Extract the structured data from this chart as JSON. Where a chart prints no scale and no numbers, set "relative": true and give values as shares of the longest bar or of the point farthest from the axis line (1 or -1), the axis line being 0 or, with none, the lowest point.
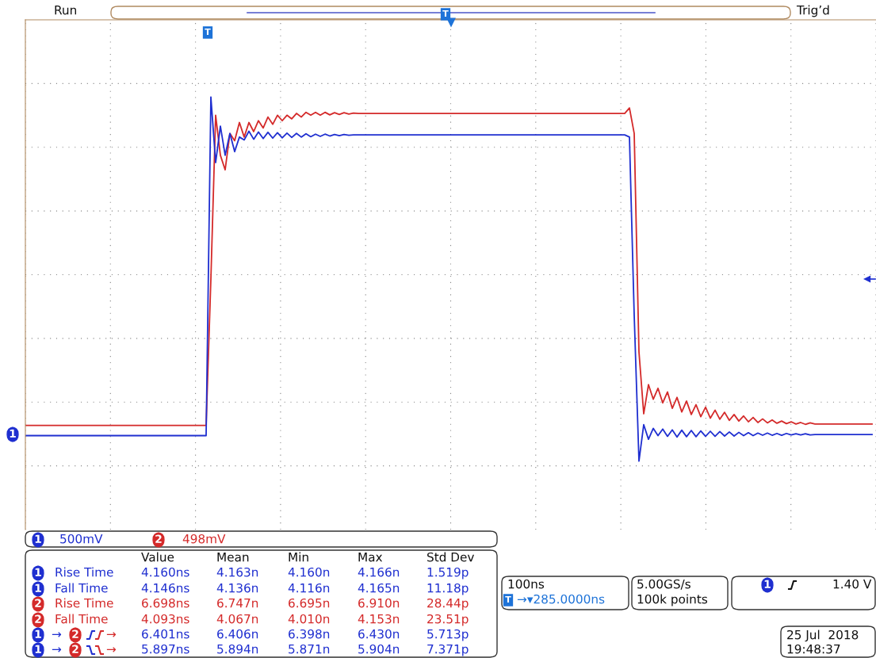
{
  "chart_data": {
    "type": "line",
    "relative": true,
    "grid": true,
    "categories": [
      null,
      null,
      null,
      null,
      null,
      null,
      null,
      null,
      null,
      null,
      null,
      null,
      null,
      null,
      null,
      null,
      null,
      null,
      null,
      null,
      null,
      null,
      null,
      null,
      null,
      null,
      null,
      null,
      null,
      null,
      null,
      null,
      null,
      null,
      null,
      null,
      null,
      null,
      null,
      null,
      null,
      null,
      null,
      null,
      null,
      null,
      null,
      null,
      null,
      null,
      null,
      null,
      null,
      null,
      null,
      null,
      null,
      null,
      null,
      null,
      null,
      null,
      null,
      null,
      null,
      null,
      null,
      null,
      null,
      null,
      null,
      null,
      null,
      null,
      null,
      null,
      null,
      null,
      null,
      null,
      null,
      null,
      null,
      null,
      null,
      null,
      null,
      null,
      null,
      null,
      null,
      null,
      null,
      null,
      null,
      null,
      null,
      null,
      null,
      null,
      null,
      null,
      null,
      null,
      null,
      null,
      null,
      null,
      null,
      null,
      null,
      null,
      null,
      null,
      null,
      null,
      null,
      null,
      null,
      null,
      null,
      null,
      null,
      null,
      null,
      null,
      null,
      null,
      null,
      null,
      null,
      null,
      null,
      null,
      null,
      null,
      null,
      null,
      null,
      null,
      null,
      null,
      null,
      null,
      null,
      null,
      null,
      null,
      null,
      null,
      null,
      null,
      null,
      null,
      null,
      null,
      null,
      null,
      null,
      null,
      null,
      null,
      null,
      null,
      null,
      null,
      null,
      null,
      null,
      null,
      null,
      null,
      null,
      null,
      null,
      null,
      null,
      null,
      null
    ],
    "series": [
      {
        "color": "#d42a2a",
        "values": [
          0.098,
          0.098,
          0.098,
          0.098,
          0.098,
          0.098,
          0.098,
          0.098,
          0.098,
          0.098,
          0.098,
          0.098,
          0.098,
          0.098,
          0.098,
          0.098,
          0.098,
          0.098,
          0.098,
          0.098,
          0.098,
          0.098,
          0.098,
          0.098,
          0.098,
          0.098,
          0.098,
          0.098,
          0.098,
          0.098,
          0.098,
          0.098,
          0.098,
          0.098,
          0.098,
          0.098,
          0.098,
          0.098,
          0.098,
          0.5,
          0.95,
          0.84,
          0.8,
          0.9,
          0.88,
          0.93,
          0.89,
          0.93,
          0.905,
          0.935,
          0.915,
          0.945,
          0.925,
          0.95,
          0.935,
          0.95,
          0.94,
          0.955,
          0.945,
          0.958,
          0.95,
          0.958,
          0.95,
          0.958,
          0.951,
          0.957,
          0.952,
          0.957,
          0.953,
          0.956,
          0.955,
          0.955,
          0.955,
          0.955,
          0.955,
          0.955,
          0.955,
          0.955,
          0.955,
          0.955,
          0.955,
          0.955,
          0.955,
          0.955,
          0.955,
          0.955,
          0.955,
          0.955,
          0.955,
          0.955,
          0.955,
          0.955,
          0.955,
          0.955,
          0.955,
          0.955,
          0.955,
          0.955,
          0.955,
          0.955,
          0.955,
          0.955,
          0.955,
          0.955,
          0.955,
          0.955,
          0.955,
          0.955,
          0.955,
          0.955,
          0.955,
          0.955,
          0.955,
          0.955,
          0.955,
          0.955,
          0.955,
          0.955,
          0.955,
          0.955,
          0.955,
          0.955,
          0.955,
          0.955,
          0.955,
          0.955,
          0.955,
          0.97,
          0.9,
          0.3,
          0.13,
          0.21,
          0.17,
          0.2,
          0.16,
          0.19,
          0.145,
          0.175,
          0.135,
          0.165,
          0.128,
          0.155,
          0.122,
          0.148,
          0.118,
          0.14,
          0.115,
          0.134,
          0.112,
          0.128,
          0.11,
          0.124,
          0.108,
          0.12,
          0.106,
          0.116,
          0.105,
          0.113,
          0.104,
          0.11,
          0.103,
          0.108,
          0.102,
          0.106,
          0.101,
          0.105,
          0.102,
          0.102,
          0.102,
          0.102,
          0.102,
          0.102,
          0.102,
          0.102,
          0.102,
          0.102,
          0.102,
          0.102,
          0.102
        ]
      },
      {
        "color": "#1f2fd0",
        "values": [
          0.07,
          0.07,
          0.07,
          0.07,
          0.07,
          0.07,
          0.07,
          0.07,
          0.07,
          0.07,
          0.07,
          0.07,
          0.07,
          0.07,
          0.07,
          0.07,
          0.07,
          0.07,
          0.07,
          0.07,
          0.07,
          0.07,
          0.07,
          0.07,
          0.07,
          0.07,
          0.07,
          0.07,
          0.07,
          0.07,
          0.07,
          0.07,
          0.07,
          0.07,
          0.07,
          0.07,
          0.07,
          0.07,
          0.07,
          1.0,
          0.82,
          0.92,
          0.84,
          0.9,
          0.85,
          0.89,
          0.882,
          0.906,
          0.884,
          0.904,
          0.886,
          0.903,
          0.887,
          0.902,
          0.888,
          0.901,
          0.889,
          0.9,
          0.89,
          0.899,
          0.891,
          0.898,
          0.892,
          0.898,
          0.893,
          0.897,
          0.894,
          0.897,
          0.895,
          0.896,
          0.896,
          0.896,
          0.896,
          0.896,
          0.896,
          0.896,
          0.896,
          0.896,
          0.896,
          0.896,
          0.896,
          0.896,
          0.896,
          0.896,
          0.896,
          0.896,
          0.896,
          0.896,
          0.896,
          0.896,
          0.896,
          0.896,
          0.896,
          0.896,
          0.896,
          0.896,
          0.896,
          0.896,
          0.896,
          0.896,
          0.896,
          0.896,
          0.896,
          0.896,
          0.896,
          0.896,
          0.896,
          0.896,
          0.896,
          0.896,
          0.896,
          0.896,
          0.896,
          0.896,
          0.896,
          0.896,
          0.896,
          0.896,
          0.896,
          0.896,
          0.896,
          0.896,
          0.896,
          0.896,
          0.896,
          0.896,
          0.896,
          0.89,
          0.4,
          0.0,
          0.1,
          0.06,
          0.09,
          0.07,
          0.088,
          0.068,
          0.086,
          0.066,
          0.085,
          0.067,
          0.084,
          0.067,
          0.083,
          0.068,
          0.082,
          0.068,
          0.081,
          0.069,
          0.08,
          0.069,
          0.079,
          0.07,
          0.078,
          0.07,
          0.077,
          0.071,
          0.077,
          0.071,
          0.076,
          0.071,
          0.076,
          0.072,
          0.075,
          0.072,
          0.075,
          0.072,
          0.073,
          0.073,
          0.073,
          0.073,
          0.073,
          0.073,
          0.073,
          0.073,
          0.073,
          0.073,
          0.073,
          0.073,
          0.073
        ]
      }
    ],
    "annotations": [
      "Run",
      "Trig’d",
      "1",
      "500mV",
      "2",
      "498mV",
      "Value",
      "Mean",
      "Min",
      "Max",
      "Std Dev",
      "1",
      "Rise Time",
      "4.160ns",
      "4.163n",
      "4.160n",
      "4.166n",
      "1.519p",
      "1",
      "Fall Time",
      "4.146ns",
      "4.136n",
      "4.116n",
      "4.165n",
      "11.18p",
      "2",
      "Rise Time",
      "6.698ns",
      "6.747n",
      "6.695n",
      "6.910n",
      "28.44p",
      "2",
      "Fall Time",
      "4.093ns",
      "4.067n",
      "4.010n",
      "4.153n",
      "23.51p",
      "1",
      "→",
      "2",
      "→",
      "6.401ns",
      "6.406n",
      "6.398n",
      "6.430n",
      "5.713p",
      "1",
      "→",
      "2",
      "→",
      "5.897ns",
      "5.894n",
      "5.871n",
      "5.904n",
      "7.371p",
      "100ns",
      "T",
      "→▾285.0000ns",
      "5.00GS/s",
      "100k points",
      "1",
      "1.40 V",
      "25 Jul  2018",
      "19:48:37",
      "T",
      "T",
      "1"
    ]
  }
}
